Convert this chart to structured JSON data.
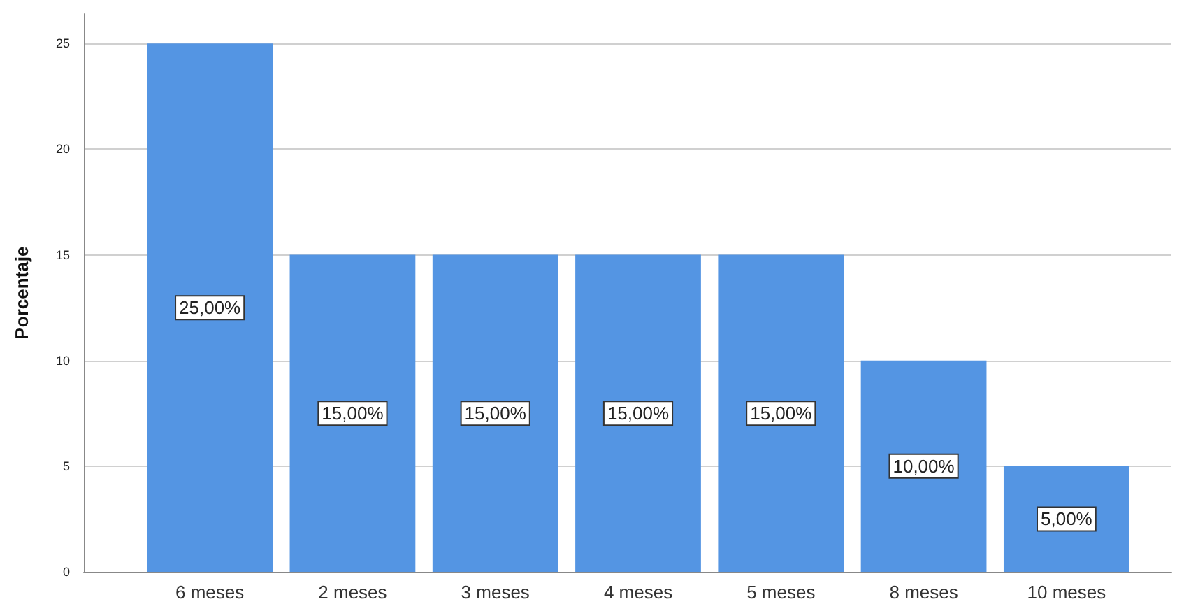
{
  "chart_data": {
    "type": "bar",
    "ylabel": "Porcentaje",
    "categories": [
      "6 meses",
      "2 meses",
      "3 meses",
      "4 meses",
      "5 meses",
      "8 meses",
      "10 meses"
    ],
    "values": [
      25,
      15,
      15,
      15,
      15,
      10,
      5
    ],
    "value_labels": [
      "25,00%",
      "15,00%",
      "15,00%",
      "15,00%",
      "15,00%",
      "10,00%",
      "5,00%"
    ],
    "color": "#5495e3",
    "ylim": [
      0,
      26.4
    ],
    "yticks": [
      0,
      5,
      10,
      15,
      20,
      25
    ],
    "grid": "y"
  }
}
